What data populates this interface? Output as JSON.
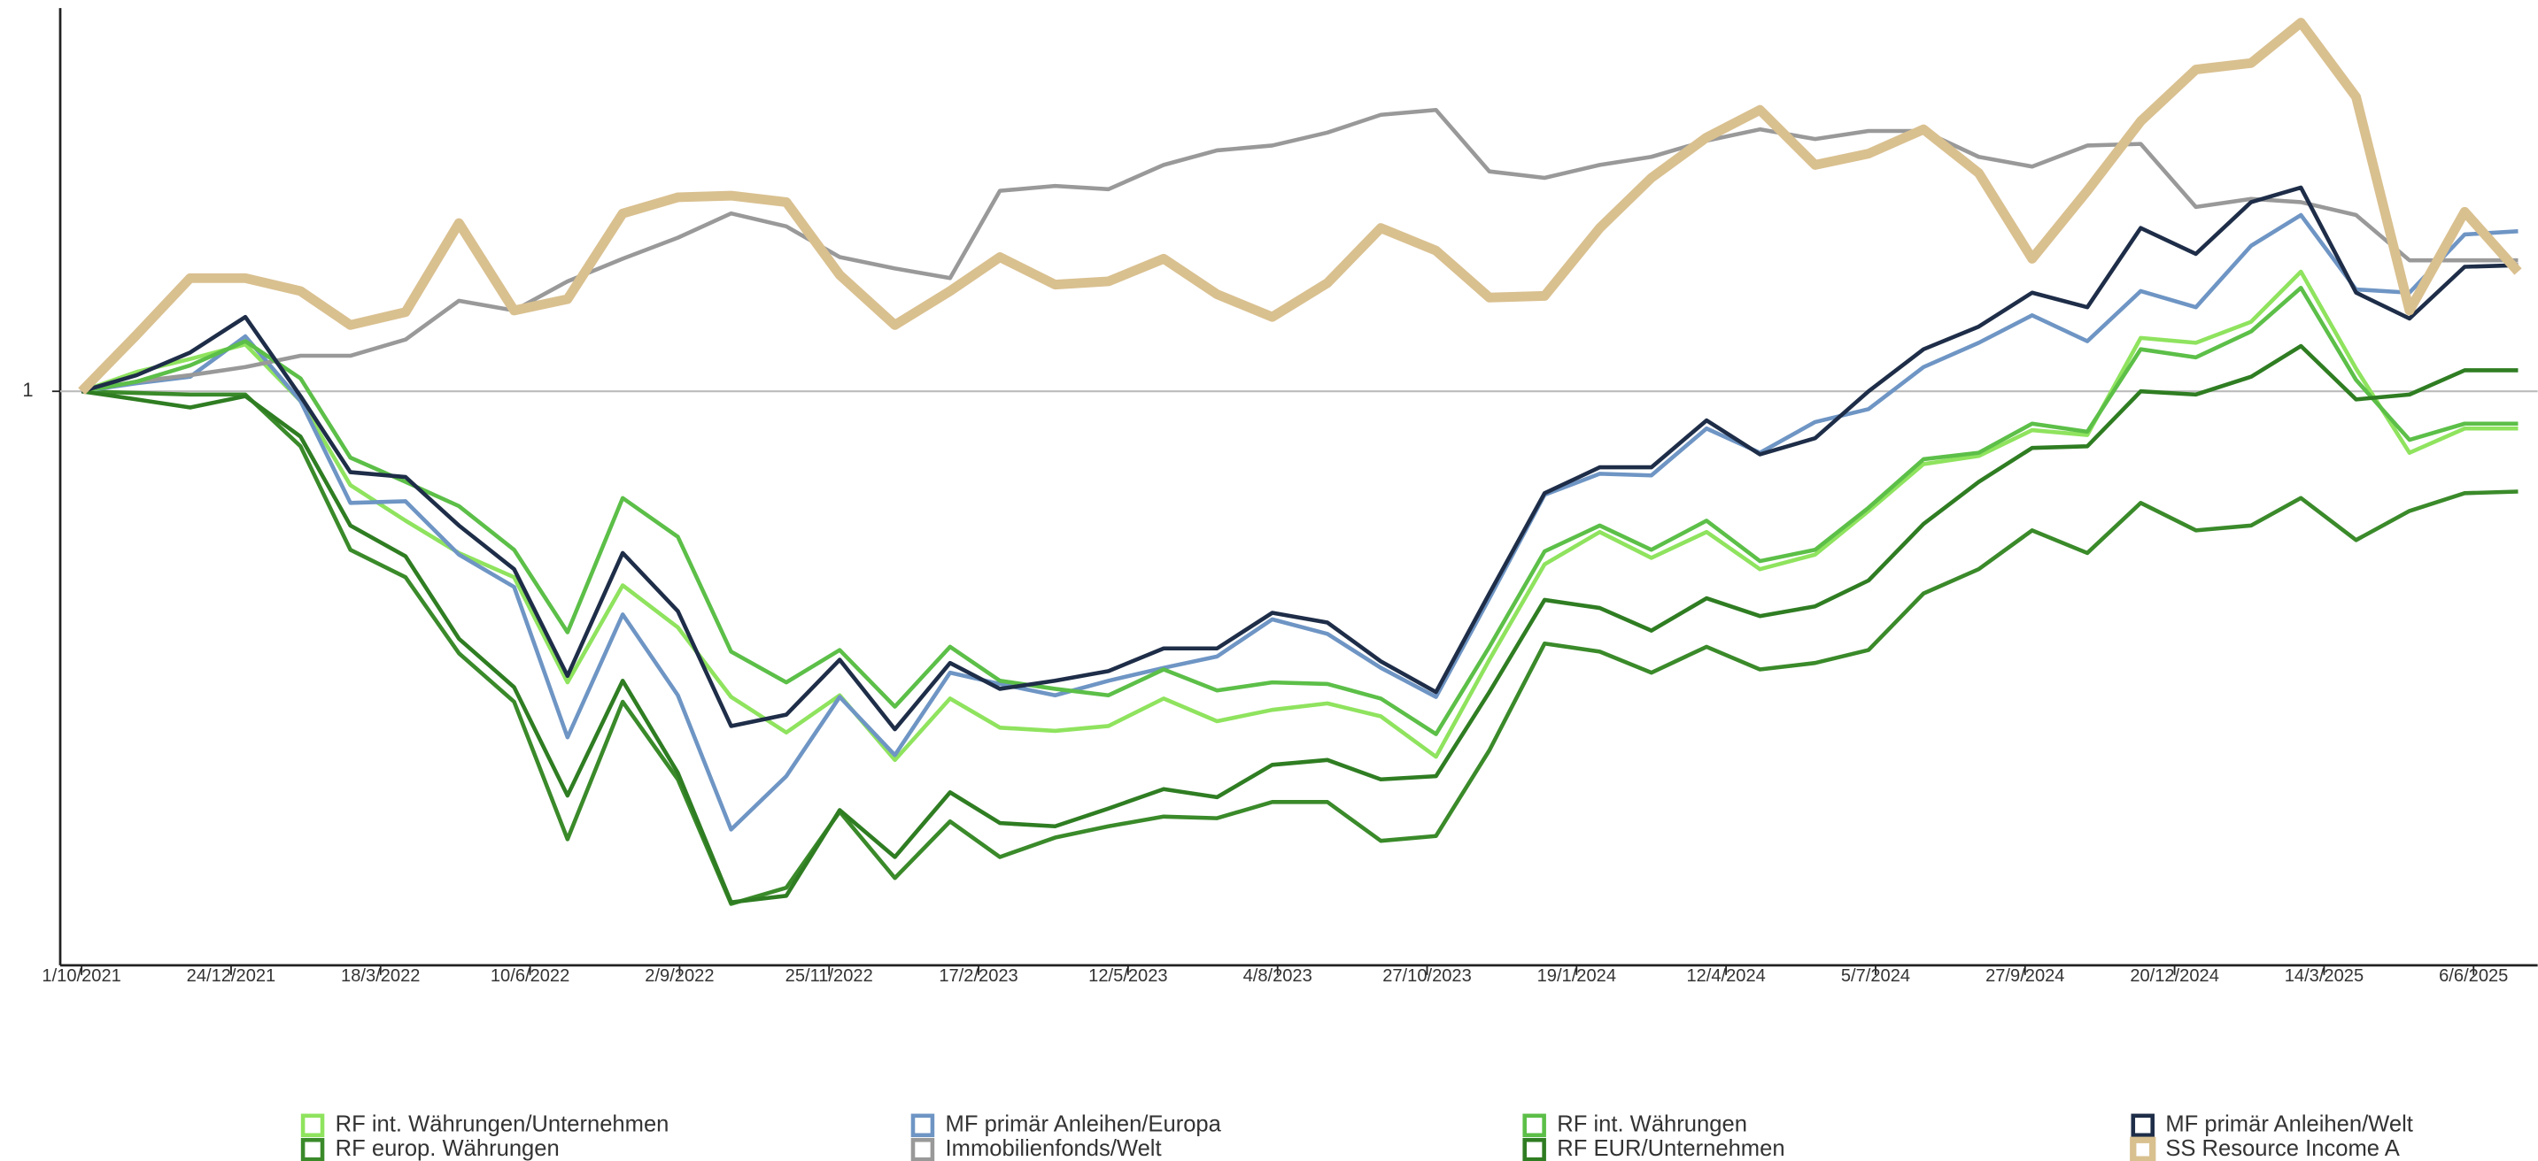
{
  "chart_data": {
    "type": "line",
    "log_scale": false,
    "grid": false,
    "x": [
      "2021-10",
      "2021-11",
      "2021-12",
      "2022-01",
      "2022-02",
      "2022-03",
      "2022-04",
      "2022-05",
      "2022-06",
      "2022-07",
      "2022-08",
      "2022-09",
      "2022-10",
      "2022-11",
      "2022-12",
      "2023-01",
      "2023-02",
      "2023-03",
      "2023-04",
      "2023-05",
      "2023-06",
      "2023-07",
      "2023-08",
      "2023-09",
      "2023-10",
      "2023-11",
      "2023-12",
      "2024-01",
      "2024-02",
      "2024-03",
      "2024-04",
      "2024-05",
      "2024-06",
      "2024-07",
      "2024-08",
      "2024-09",
      "2024-10",
      "2024-11",
      "2024-12",
      "2025-01",
      "2025-02",
      "2025-03",
      "2025-04",
      "2025-05",
      "2025-06",
      "2025-07"
    ],
    "xlim": [
      "2021-09-19",
      "2025-07-12"
    ],
    "xticks": [
      {
        "value": "2021-10-01",
        "label": "1/10/2021"
      },
      {
        "value": "2021-12-24",
        "label": "24/12/2021"
      },
      {
        "value": "2022-03-18",
        "label": "18/3/2022"
      },
      {
        "value": "2022-06-10",
        "label": "10/6/2022"
      },
      {
        "value": "2022-09-02",
        "label": "2/9/2022"
      },
      {
        "value": "2022-11-25",
        "label": "25/11/2022"
      },
      {
        "value": "2023-02-17",
        "label": "17/2/2023"
      },
      {
        "value": "2023-05-12",
        "label": "12/5/2023"
      },
      {
        "value": "2023-08-04",
        "label": "4/8/2023"
      },
      {
        "value": "2023-10-27",
        "label": "27/10/2023"
      },
      {
        "value": "2024-01-19",
        "label": "19/1/2024"
      },
      {
        "value": "2024-04-12",
        "label": "12/4/2024"
      },
      {
        "value": "2024-07-05",
        "label": "5/7/2024"
      },
      {
        "value": "2024-09-27",
        "label": "27/9/2024"
      },
      {
        "value": "2024-12-20",
        "label": "20/12/2024"
      },
      {
        "value": "2025-03-14",
        "label": "14/3/2025"
      },
      {
        "value": "2025-06-06",
        "label": "6/6/2025"
      }
    ],
    "ylim": [
      0.645,
      1.237
    ],
    "yticks": [
      1
    ],
    "series": [
      {
        "name": "RF int. Währungen/Unternehmen",
        "color": "#8fe35e",
        "line_width": 2.5,
        "values": [
          1.0,
          1.012,
          1.02,
          1.029,
          0.994,
          0.942,
          0.92,
          0.9,
          0.885,
          0.82,
          0.88,
          0.854,
          0.811,
          0.789,
          0.812,
          0.772,
          0.81,
          0.792,
          0.79,
          0.793,
          0.81,
          0.796,
          0.803,
          0.807,
          0.799,
          0.774,
          0.834,
          0.893,
          0.913,
          0.897,
          0.913,
          0.89,
          0.899,
          0.926,
          0.955,
          0.96,
          0.976,
          0.973,
          1.033,
          1.03,
          1.043,
          1.074,
          1.014,
          0.962,
          0.977,
          0.977
        ]
      },
      {
        "name": "RF europ. Währungen",
        "color": "#3a8a2a",
        "line_width": 2.5,
        "values": [
          1.0,
          0.999,
          0.998,
          0.998,
          0.966,
          0.902,
          0.885,
          0.838,
          0.808,
          0.723,
          0.808,
          0.76,
          0.683,
          0.693,
          0.74,
          0.699,
          0.734,
          0.712,
          0.724,
          0.731,
          0.737,
          0.736,
          0.746,
          0.746,
          0.722,
          0.725,
          0.778,
          0.844,
          0.839,
          0.826,
          0.842,
          0.828,
          0.832,
          0.84,
          0.875,
          0.89,
          0.914,
          0.9,
          0.931,
          0.914,
          0.917,
          0.934,
          0.908,
          0.926,
          0.937,
          0.938
        ]
      },
      {
        "name": "MF primär Anleihen/Europa",
        "color": "#6e95c4",
        "line_width": 2.5,
        "values": [
          1.0,
          1.005,
          1.009,
          1.034,
          0.994,
          0.931,
          0.932,
          0.899,
          0.879,
          0.786,
          0.862,
          0.812,
          0.729,
          0.762,
          0.811,
          0.775,
          0.826,
          0.819,
          0.812,
          0.821,
          0.829,
          0.836,
          0.859,
          0.85,
          0.829,
          0.811,
          0.872,
          0.936,
          0.949,
          0.948,
          0.977,
          0.962,
          0.981,
          0.989,
          1.015,
          1.03,
          1.047,
          1.031,
          1.062,
          1.052,
          1.09,
          1.109,
          1.063,
          1.061,
          1.097,
          1.099
        ]
      },
      {
        "name": "Immobilienfonds/Welt",
        "color": "#999999",
        "line_width": 2.5,
        "values": [
          1.0,
          1.006,
          1.01,
          1.015,
          1.022,
          1.022,
          1.032,
          1.056,
          1.05,
          1.068,
          1.082,
          1.095,
          1.11,
          1.102,
          1.083,
          1.076,
          1.07,
          1.124,
          1.127,
          1.125,
          1.14,
          1.149,
          1.152,
          1.16,
          1.171,
          1.174,
          1.136,
          1.132,
          1.14,
          1.145,
          1.155,
          1.162,
          1.156,
          1.161,
          1.161,
          1.145,
          1.139,
          1.152,
          1.153,
          1.114,
          1.119,
          1.117,
          1.109,
          1.081,
          1.081,
          1.081
        ]
      },
      {
        "name": "RF int. Währungen",
        "color": "#5cbf48",
        "line_width": 2.5,
        "values": [
          1.0,
          1.006,
          1.016,
          1.031,
          1.008,
          0.959,
          0.944,
          0.929,
          0.902,
          0.851,
          0.934,
          0.91,
          0.839,
          0.82,
          0.84,
          0.805,
          0.842,
          0.821,
          0.816,
          0.812,
          0.828,
          0.815,
          0.82,
          0.819,
          0.81,
          0.788,
          0.842,
          0.901,
          0.917,
          0.902,
          0.92,
          0.895,
          0.902,
          0.928,
          0.958,
          0.962,
          0.98,
          0.975,
          1.026,
          1.021,
          1.037,
          1.064,
          1.007,
          0.97,
          0.98,
          0.98
        ]
      },
      {
        "name": "RF EUR/Unternehmen",
        "color": "#2f7d22",
        "line_width": 2.5,
        "values": [
          1.0,
          0.995,
          0.99,
          0.997,
          0.972,
          0.917,
          0.898,
          0.847,
          0.817,
          0.75,
          0.821,
          0.764,
          0.684,
          0.688,
          0.741,
          0.712,
          0.752,
          0.733,
          0.731,
          0.742,
          0.754,
          0.749,
          0.769,
          0.772,
          0.76,
          0.762,
          0.814,
          0.871,
          0.866,
          0.852,
          0.872,
          0.861,
          0.867,
          0.883,
          0.918,
          0.944,
          0.965,
          0.966,
          1.0,
          0.998,
          1.009,
          1.028,
          0.995,
          0.998,
          1.013,
          1.013
        ]
      },
      {
        "name": "MF primär Anleihen/Welt",
        "color": "#1e2d48",
        "line_width": 2.5,
        "values": [
          1.0,
          1.01,
          1.024,
          1.046,
          0.997,
          0.95,
          0.947,
          0.917,
          0.89,
          0.824,
          0.9,
          0.864,
          0.793,
          0.8,
          0.834,
          0.791,
          0.832,
          0.816,
          0.821,
          0.827,
          0.841,
          0.841,
          0.863,
          0.857,
          0.833,
          0.814,
          0.875,
          0.937,
          0.953,
          0.953,
          0.982,
          0.961,
          0.971,
          1.0,
          1.026,
          1.04,
          1.061,
          1.052,
          1.101,
          1.085,
          1.117,
          1.126,
          1.061,
          1.045,
          1.077,
          1.078
        ]
      },
      {
        "name": "SS Resource Income A",
        "color": "#d9c08f",
        "line_width": 6,
        "values": [
          1.0,
          1.035,
          1.07,
          1.07,
          1.062,
          1.041,
          1.049,
          1.104,
          1.05,
          1.057,
          1.11,
          1.12,
          1.121,
          1.117,
          1.072,
          1.041,
          1.062,
          1.083,
          1.066,
          1.068,
          1.082,
          1.06,
          1.046,
          1.067,
          1.101,
          1.087,
          1.058,
          1.059,
          1.101,
          1.132,
          1.157,
          1.174,
          1.14,
          1.147,
          1.162,
          1.135,
          1.082,
          1.124,
          1.167,
          1.199,
          1.203,
          1.228,
          1.182,
          1.05,
          1.111,
          1.074
        ]
      }
    ]
  }
}
